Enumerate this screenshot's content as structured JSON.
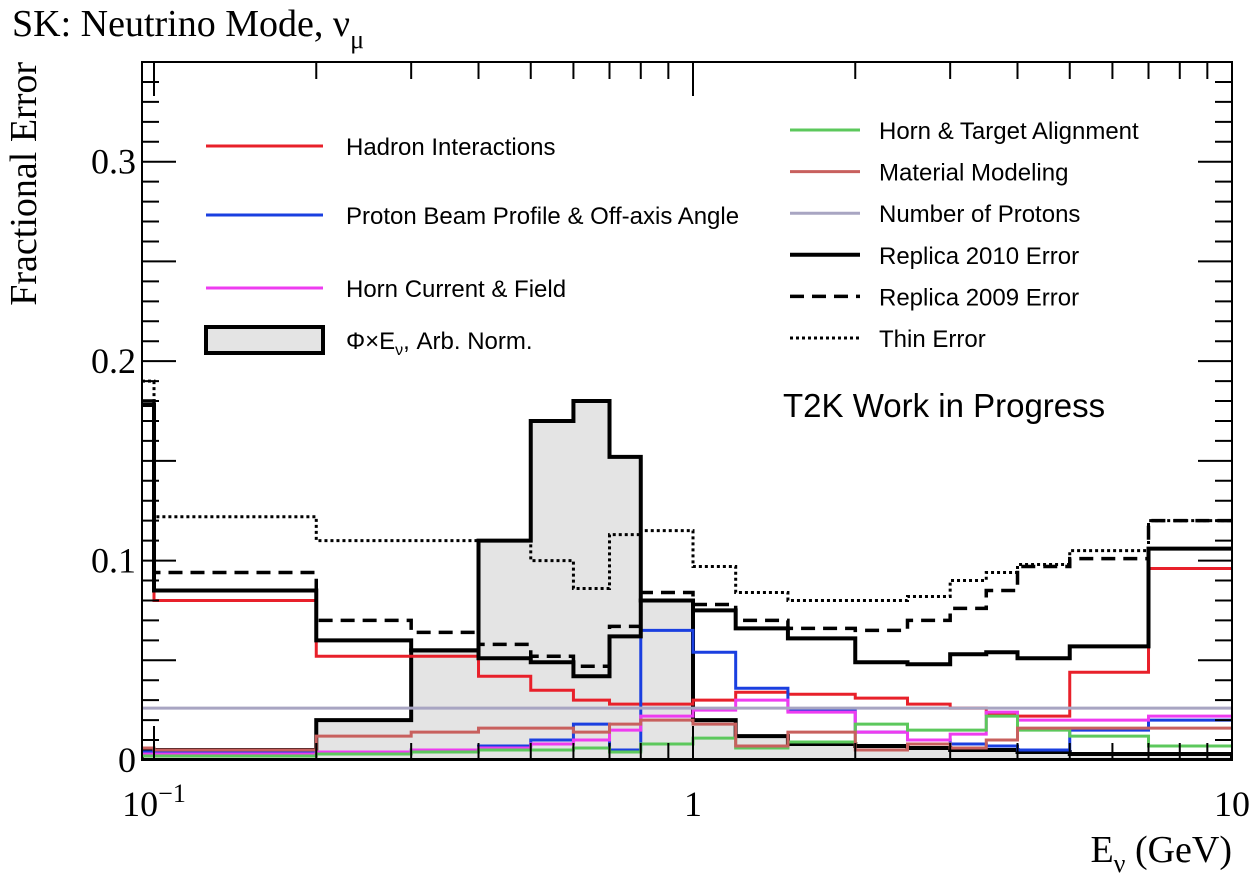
{
  "chart_data": {
    "type": "line",
    "title": "SK: Neutrino Mode, ",
    "title_symbol": "ν",
    "title_subscript": "μ",
    "xlabel": "E",
    "xlabel_sub": "ν",
    "xlabel_unit": " (GeV)",
    "ylabel": "Fractional Error",
    "xscale": "log",
    "xlim": [
      0.095,
      10
    ],
    "ylim": [
      0,
      0.35
    ],
    "x_ticks": [
      {
        "value": 0.1,
        "base": "10",
        "exp": "−1"
      },
      {
        "value": 1,
        "label": "1"
      },
      {
        "value": 10,
        "label": "10"
      }
    ],
    "y_ticks": [
      {
        "value": 0,
        "label": "0"
      },
      {
        "value": 0.1,
        "label": "0.1"
      },
      {
        "value": 0.2,
        "label": "0.2"
      },
      {
        "value": 0.3,
        "label": "0.3"
      }
    ],
    "annotation": "T2K Work in Progress",
    "bin_edges": [
      0.095,
      0.1,
      0.2,
      0.3,
      0.4,
      0.5,
      0.6,
      0.7,
      0.8,
      1.0,
      1.2,
      1.5,
      2.0,
      2.5,
      3.0,
      3.5,
      4.0,
      5.0,
      7.0,
      10.0
    ],
    "flux_shape": {
      "name": "Φ×E",
      "name_sub": "ν",
      "name_suffix": ", Arb. Norm.",
      "color": "#e4e4e4",
      "values": [
        0.005,
        0.005,
        0.02,
        0.055,
        0.11,
        0.17,
        0.18,
        0.152,
        0.08,
        0.02,
        0.012,
        0.008,
        0.007,
        0.006,
        0.005,
        0.005,
        0.004,
        0.003,
        0.003
      ]
    },
    "series": [
      {
        "name": "Hadron Interactions",
        "color": "#e8202a",
        "style": "solid",
        "width": 3,
        "values": [
          0.178,
          0.08,
          0.052,
          0.052,
          0.042,
          0.035,
          0.03,
          0.028,
          0.028,
          0.03,
          0.034,
          0.033,
          0.031,
          0.028,
          0.026,
          0.023,
          0.022,
          0.044,
          0.096
        ]
      },
      {
        "name": "Proton Beam Profile & Off-axis Angle",
        "color": "#1a3fe0",
        "style": "solid",
        "width": 3,
        "values": [
          0.004,
          0.004,
          0.004,
          0.005,
          0.007,
          0.01,
          0.018,
          0.005,
          0.065,
          0.054,
          0.036,
          0.025,
          0.014,
          0.01,
          0.008,
          0.007,
          0.005,
          0.015,
          0.02
        ]
      },
      {
        "name": "Horn Current & Field",
        "color": "#ee3cf0",
        "style": "solid",
        "width": 3,
        "values": [
          0.003,
          0.003,
          0.004,
          0.005,
          0.006,
          0.008,
          0.01,
          0.015,
          0.022,
          0.025,
          0.03,
          0.024,
          0.014,
          0.01,
          0.013,
          0.024,
          0.02,
          0.02,
          0.022
        ]
      },
      {
        "name": "Horn & Target Alignment",
        "color": "#5cc85c",
        "style": "solid",
        "width": 3,
        "values": [
          0.002,
          0.002,
          0.003,
          0.004,
          0.005,
          0.005,
          0.006,
          0.004,
          0.008,
          0.011,
          0.006,
          0.009,
          0.018,
          0.015,
          0.015,
          0.022,
          0.015,
          0.012,
          0.007
        ]
      },
      {
        "name": "Material Modeling",
        "color": "#c8605e",
        "style": "solid",
        "width": 3,
        "values": [
          0.006,
          0.005,
          0.012,
          0.014,
          0.016,
          0.016,
          0.014,
          0.018,
          0.02,
          0.018,
          0.007,
          0.014,
          0.005,
          0.008,
          0.006,
          0.01,
          0.016,
          0.016,
          0.016
        ]
      },
      {
        "name": "Number of Protons",
        "color": "#a8a5c2",
        "style": "solid",
        "width": 3,
        "values": [
          0.026,
          0.026,
          0.026,
          0.026,
          0.026,
          0.026,
          0.026,
          0.026,
          0.026,
          0.026,
          0.026,
          0.026,
          0.026,
          0.026,
          0.026,
          0.026,
          0.026,
          0.026,
          0.026
        ]
      },
      {
        "name": "Replica 2010 Error",
        "color": "#000000",
        "style": "solid",
        "width": 4,
        "values": [
          0.178,
          0.085,
          0.06,
          0.055,
          0.051,
          0.049,
          0.042,
          0.062,
          0.08,
          0.075,
          0.066,
          0.061,
          0.049,
          0.048,
          0.053,
          0.054,
          0.051,
          0.057,
          0.106
        ]
      },
      {
        "name": "Replica 2009 Error",
        "color": "#000000",
        "style": "dashed",
        "width": 3.5,
        "values": [
          0.18,
          0.094,
          0.07,
          0.064,
          0.058,
          0.052,
          0.047,
          0.067,
          0.084,
          0.078,
          0.07,
          0.066,
          0.065,
          0.07,
          0.076,
          0.085,
          0.097,
          0.101,
          0.12
        ]
      },
      {
        "name": "Thin Error",
        "color": "#000000",
        "style": "dotted",
        "width": 3,
        "values": [
          0.19,
          0.122,
          0.11,
          0.11,
          0.11,
          0.1,
          0.086,
          0.113,
          0.115,
          0.097,
          0.084,
          0.08,
          0.08,
          0.082,
          0.09,
          0.094,
          0.098,
          0.105,
          0.12
        ]
      }
    ],
    "legend_left": [
      "Hadron Interactions",
      "Proton Beam Profile & Off-axis Angle",
      "Horn Current & Field",
      "flux_shape"
    ],
    "legend_right": [
      "Horn & Target Alignment",
      "Material Modeling",
      "Number of Protons",
      "Replica 2010 Error",
      "Replica 2009 Error",
      "Thin Error"
    ]
  }
}
